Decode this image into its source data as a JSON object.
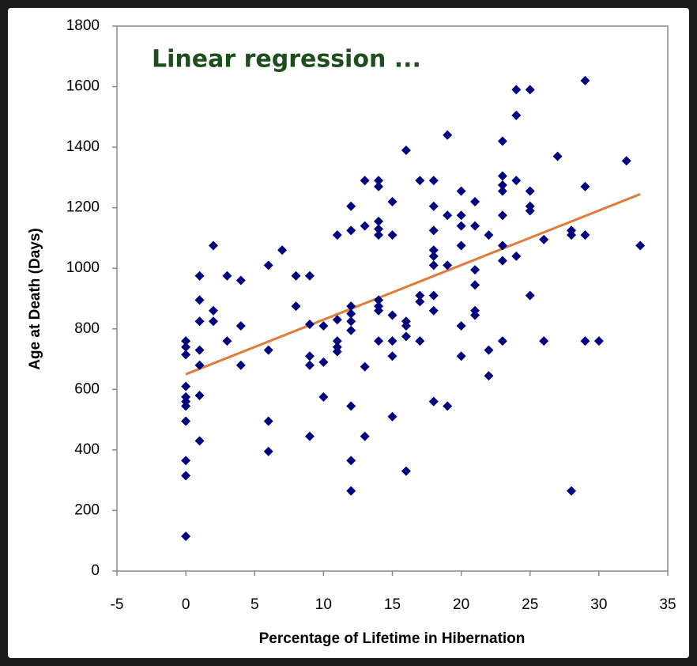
{
  "chart_data": {
    "type": "scatter",
    "title": "Linear regression ...",
    "xlabel": "Percentage of Lifetime in Hibernation",
    "ylabel": "Age at Death (Days)",
    "xlim": [
      -5,
      35
    ],
    "xticks": [
      -5,
      0,
      5,
      10,
      15,
      20,
      25,
      30,
      35
    ],
    "ylim": [
      0,
      1800
    ],
    "yticks": [
      0,
      200,
      400,
      600,
      800,
      1000,
      1200,
      1400,
      1600,
      1800
    ],
    "series": [
      {
        "color": "#00007f",
        "marker": "diamond",
        "x": [
          0,
          0,
          0,
          0,
          0,
          0,
          0,
          0,
          0,
          0,
          0,
          1,
          1,
          1,
          1,
          1,
          1,
          1,
          2,
          2,
          2,
          3,
          3,
          4,
          4,
          4,
          6,
          6,
          6,
          6,
          7,
          8,
          8,
          9,
          9,
          9,
          9,
          9,
          10,
          10,
          10,
          11,
          11,
          11,
          11,
          11,
          12,
          12,
          12,
          12,
          12,
          12,
          12,
          12,
          12,
          13,
          13,
          13,
          13,
          14,
          14,
          14,
          14,
          14,
          14,
          14,
          14,
          14,
          15,
          15,
          15,
          15,
          15,
          15,
          16,
          16,
          16,
          16,
          16,
          17,
          17,
          17,
          17,
          18,
          18,
          18,
          18,
          18,
          18,
          18,
          18,
          18,
          19,
          19,
          19,
          19,
          20,
          20,
          20,
          20,
          20,
          20,
          21,
          21,
          21,
          21,
          21,
          21,
          22,
          22,
          22,
          23,
          23,
          23,
          23,
          23,
          23,
          23,
          23,
          24,
          24,
          24,
          24,
          25,
          25,
          25,
          25,
          25,
          26,
          26,
          27,
          28,
          28,
          28,
          29,
          29,
          29,
          29,
          30,
          32,
          33
        ],
        "values": [
          760,
          740,
          715,
          610,
          575,
          560,
          545,
          495,
          365,
          315,
          115,
          975,
          895,
          825,
          730,
          680,
          580,
          430,
          1075,
          860,
          825,
          975,
          760,
          960,
          810,
          680,
          1010,
          730,
          495,
          395,
          1060,
          975,
          875,
          975,
          815,
          710,
          680,
          445,
          810,
          690,
          575,
          1110,
          830,
          760,
          740,
          725,
          1205,
          1125,
          875,
          850,
          825,
          795,
          545,
          365,
          265,
          1290,
          1140,
          675,
          445,
          1290,
          1270,
          1155,
          1130,
          1110,
          895,
          875,
          860,
          760,
          1220,
          1110,
          845,
          760,
          710,
          510,
          1390,
          825,
          810,
          775,
          330,
          1290,
          910,
          890,
          760,
          1290,
          1205,
          1125,
          1060,
          1040,
          1010,
          910,
          860,
          560,
          1440,
          1175,
          1010,
          545,
          1255,
          1175,
          1140,
          1075,
          810,
          710,
          1220,
          1140,
          995,
          945,
          860,
          845,
          1110,
          730,
          645,
          1420,
          1305,
          1275,
          1255,
          1175,
          1075,
          1025,
          760,
          1590,
          1505,
          1290,
          1040,
          1590,
          1255,
          1205,
          1190,
          910,
          1095,
          760,
          1370,
          1125,
          1110,
          265,
          1620,
          1270,
          1110,
          760,
          760,
          1355,
          1075
        ]
      }
    ],
    "trendline": {
      "color": "#e07b39",
      "x": [
        0,
        33
      ],
      "values": [
        650,
        1245
      ]
    },
    "title_color": "#1e4d1e"
  }
}
